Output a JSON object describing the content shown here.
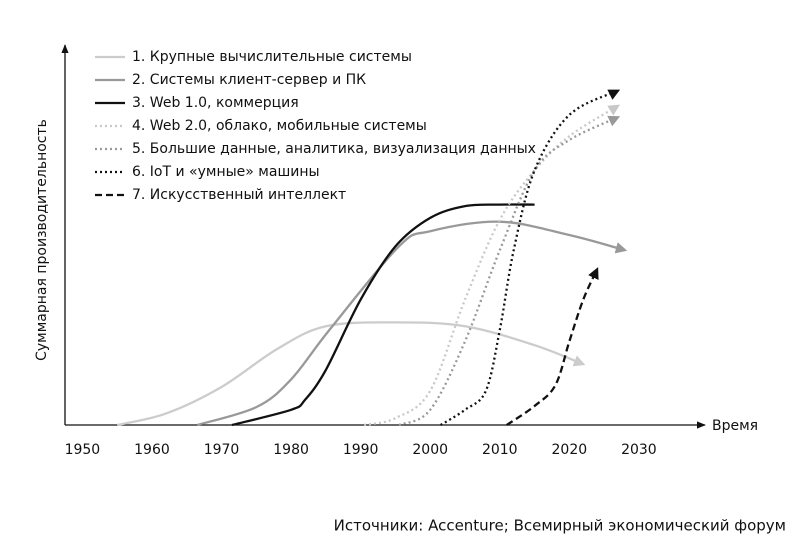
{
  "chart_data": {
    "type": "line",
    "xlabel": "Время",
    "ylabel": "Суммарная производительность",
    "source": "Источники: Accenture; Всемирный экономический форум",
    "xlim": [
      1947.5,
      2039.5
    ],
    "ylim": [
      0,
      100
    ],
    "xticks": [
      1950,
      1960,
      1970,
      1980,
      1990,
      2000,
      2010,
      2020,
      2030
    ],
    "series": [
      {
        "name": "1. Крупные вычислительные системы",
        "color": "#cccccc",
        "style": "solid",
        "x": [
          1955,
          1962,
          1970,
          1978,
          1985,
          1995,
          2005,
          2015,
          2022
        ],
        "values": [
          0,
          3,
          10,
          20,
          26,
          27,
          26,
          21,
          16
        ]
      },
      {
        "name": "2. Системы клиент-сервер и ПК",
        "color": "#999999",
        "style": "solid",
        "x": [
          1966.5,
          1975,
          1980,
          1985.5,
          1995.5,
          2000,
          2010,
          2020,
          2028
        ],
        "values": [
          0,
          4.7,
          12,
          25,
          47,
          51,
          53.5,
          50,
          46
        ]
      },
      {
        "name": "3. Web 1.0, коммерция",
        "color": "#111111",
        "style": "solid",
        "x": [
          1971.5,
          1980,
          1982,
          1985,
          1990,
          1995,
          2000,
          2005,
          2010,
          2015
        ],
        "values": [
          0,
          4,
          6.6,
          14.5,
          33,
          47,
          54.5,
          57.6,
          58,
          58
        ]
      },
      {
        "name": "4. Web 2.0, облако, мобильные системы",
        "color": "#c8c8c8",
        "style": "dotted",
        "x": [
          1990.5,
          1995,
          2000,
          2005,
          2010,
          2015,
          2020,
          2027
        ],
        "values": [
          0,
          1.8,
          9,
          33,
          54,
          67,
          76,
          84
        ]
      },
      {
        "name": "5. Большие данные, аналитика, визуализация данных",
        "color": "#999999",
        "style": "dotted",
        "x": [
          1995.5,
          2000,
          2005,
          2010,
          2015,
          2020,
          2027
        ],
        "values": [
          0,
          4,
          22,
          46,
          67,
          75,
          81
        ]
      },
      {
        "name": "6. IoT и «умные» машины",
        "color": "#111111",
        "style": "dotted",
        "x": [
          2001.5,
          2005,
          2008,
          2010,
          2012,
          2015,
          2020,
          2027
        ],
        "values": [
          0,
          4,
          9,
          25,
          46,
          67,
          81.6,
          88
        ]
      },
      {
        "name": "7. Искусственный интеллект",
        "color": "#111111",
        "style": "dashed",
        "x": [
          2011,
          2015,
          2018,
          2020,
          2022,
          2024
        ],
        "values": [
          0,
          5,
          10.5,
          22,
          33,
          41
        ]
      }
    ]
  }
}
